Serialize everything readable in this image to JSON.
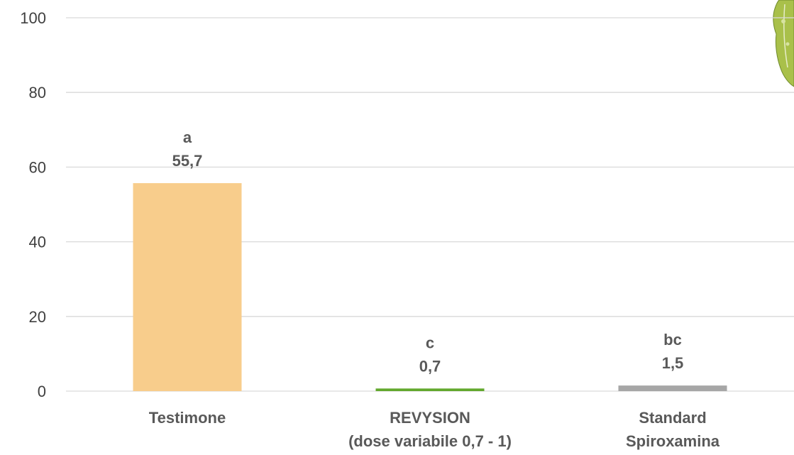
{
  "chart_data": {
    "type": "bar",
    "title": "",
    "xlabel": "",
    "ylabel": "",
    "ylim": [
      0,
      100
    ],
    "yticks": [
      0,
      20,
      40,
      60,
      80,
      100
    ],
    "grid": true,
    "categories": [
      [
        "Testimone"
      ],
      [
        "REVYSION",
        "(dose variabile 0,7 - 1)"
      ],
      [
        "Standard",
        "Spiroxamina"
      ]
    ],
    "values": [
      55.7,
      0.7,
      1.5
    ],
    "value_labels": [
      "55,7",
      "0,7",
      "1,5"
    ],
    "significance_letters": [
      "a",
      "c",
      "bc"
    ],
    "bar_colors": [
      "#f8cd8c",
      "#62a82d",
      "#a6a6a6"
    ],
    "colors": {
      "grid": "#d9d9d9",
      "tick_text": "#404040",
      "label_text": "#595959"
    },
    "decorations": [
      "grape-leaf-illustration"
    ]
  }
}
